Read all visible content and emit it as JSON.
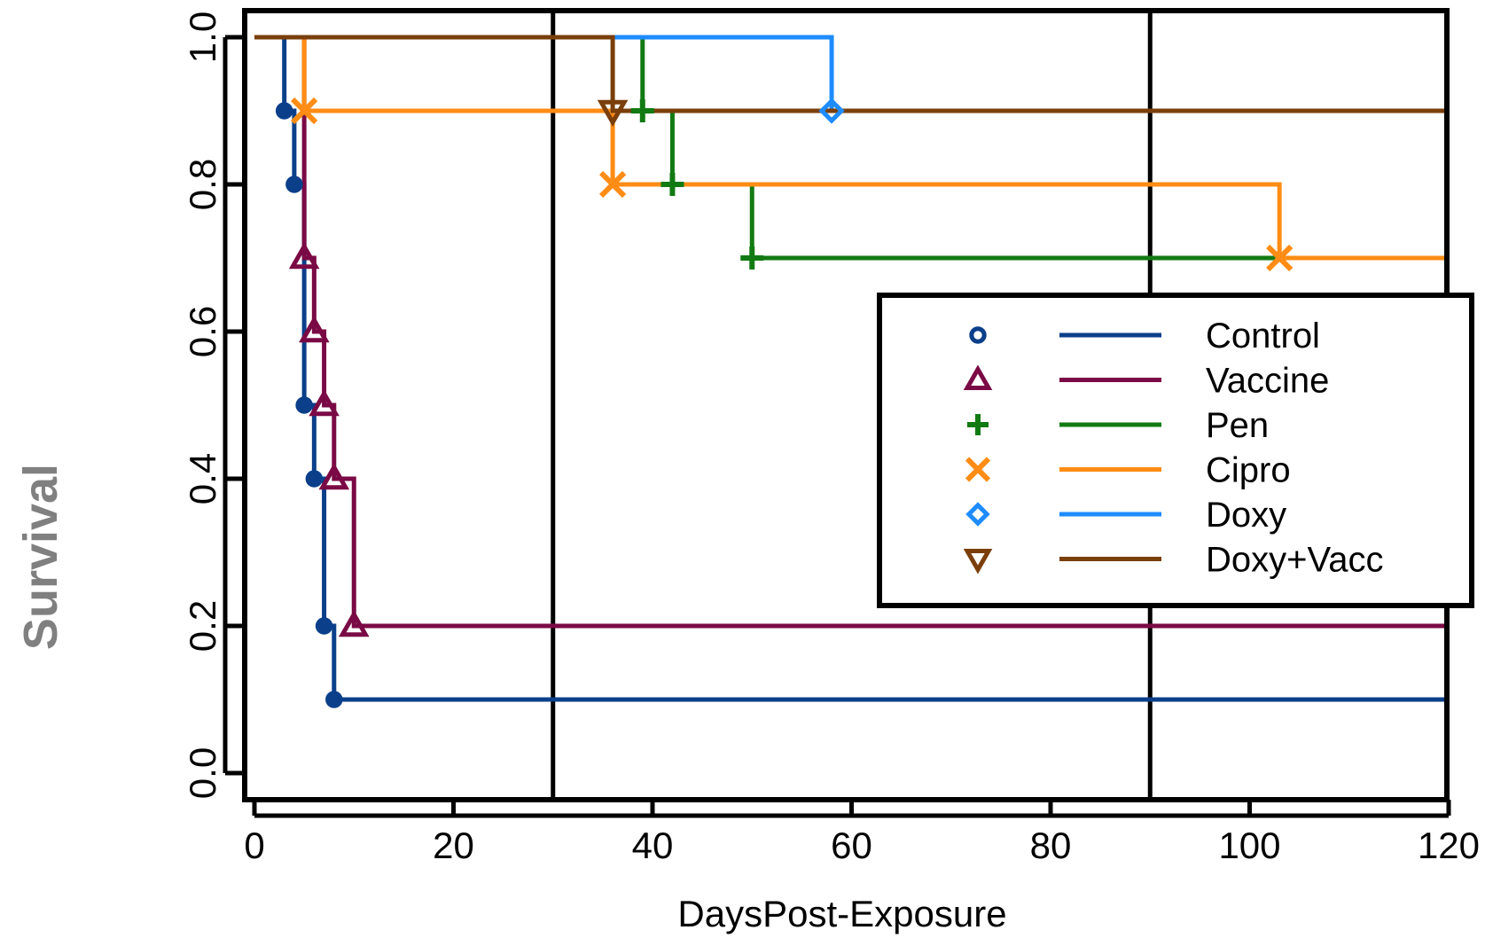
{
  "chart_data": {
    "type": "line",
    "subtype": "kaplan-meier-step",
    "xlabel": "DaysPost-Exposure",
    "ylabel": "Survival",
    "xlim": [
      -1,
      120
    ],
    "ylim": [
      -0.04,
      1.04
    ],
    "xticks": [
      0,
      20,
      40,
      60,
      80,
      100,
      120
    ],
    "xtick_labels": [
      "0",
      "20",
      "40",
      "60",
      "80",
      "100",
      "120"
    ],
    "yticks": [
      0.0,
      0.2,
      0.4,
      0.6,
      0.8,
      1.0
    ],
    "ytick_labels": [
      "0.0",
      "0.2",
      "0.4",
      "0.6",
      "0.8",
      "1.0"
    ],
    "reference_lines_x": [
      30,
      90
    ],
    "grid": false,
    "legend_position": "center-right",
    "series": [
      {
        "name": "Control",
        "color": "#0b3f8a",
        "marker": "circle",
        "x": [
          0,
          3,
          4,
          5,
          6,
          7,
          8,
          120
        ],
        "y": [
          1.0,
          0.9,
          0.8,
          0.5,
          0.4,
          0.2,
          0.1,
          0.1
        ]
      },
      {
        "name": "Vaccine",
        "color": "#7a0a45",
        "marker": "triangle-up",
        "x": [
          0,
          5,
          6,
          7,
          8,
          10,
          120
        ],
        "y": [
          1.0,
          0.7,
          0.6,
          0.5,
          0.4,
          0.2,
          0.2
        ]
      },
      {
        "name": "Pen",
        "color": "#127a12",
        "marker": "plus",
        "x": [
          0,
          39,
          42,
          50,
          120
        ],
        "y": [
          1.0,
          0.9,
          0.8,
          0.7,
          0.7
        ]
      },
      {
        "name": "Cipro",
        "color": "#ff8c14",
        "marker": "x",
        "x": [
          0,
          5,
          36,
          103,
          120
        ],
        "y": [
          1.0,
          0.9,
          0.8,
          0.7,
          0.7
        ]
      },
      {
        "name": "Doxy",
        "color": "#1e8cff",
        "marker": "diamond",
        "x": [
          0,
          58,
          120
        ],
        "y": [
          1.0,
          0.9,
          0.9
        ]
      },
      {
        "name": "Doxy+Vacc",
        "color": "#7a3f0a",
        "marker": "triangle-down",
        "x": [
          0,
          36,
          120
        ],
        "y": [
          1.0,
          0.9,
          0.9
        ]
      }
    ]
  }
}
